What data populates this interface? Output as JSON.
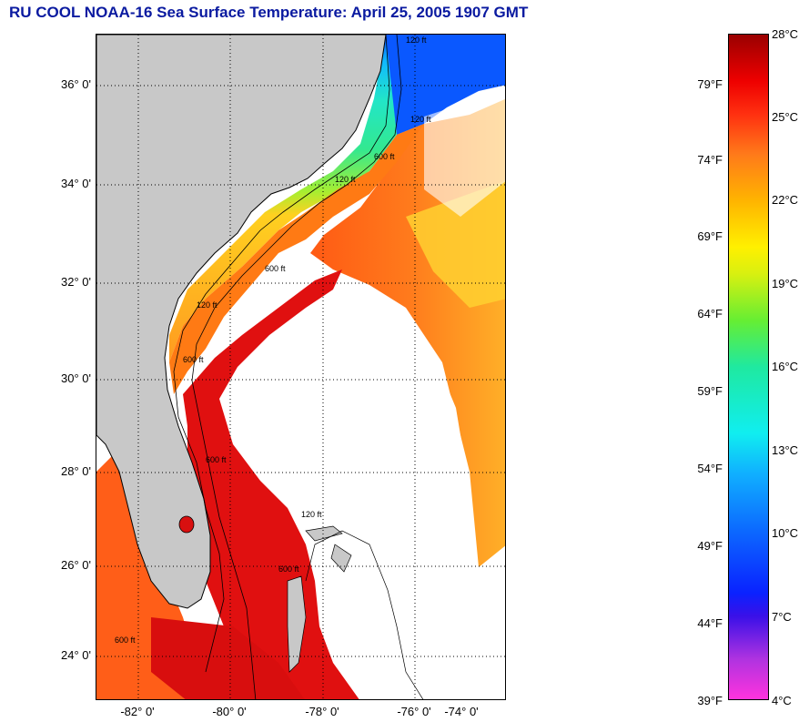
{
  "title": "RU COOL  NOAA-16  Sea Surface Temperature:  April 25, 2005 1907 GMT",
  "map": {
    "lat_labels": [
      "36° 0'",
      "34° 0'",
      "32° 0'",
      "30° 0'",
      "28° 0'",
      "26° 0'",
      "24° 0'"
    ],
    "lon_labels": [
      "-82° 0'",
      "-80° 0'",
      "-78° 0'",
      "-76° 0'",
      "-74° 0'"
    ],
    "contour_labels": [
      "120 ft",
      "120 ft",
      "600 ft",
      "120 ft",
      "600 ft",
      "120 ft",
      "600 ft",
      "600 ft",
      "120 ft",
      "600 ft",
      "600 ft"
    ],
    "colors": {
      "land": "#c8c8c8",
      "cloud": "#ffffff",
      "gulf_stream": "#e01010",
      "warm_water": "#ff6a1a",
      "shelf_water": "#24e2b8",
      "cold_water": "#0a58ff"
    }
  },
  "colorbar": {
    "fahrenheit_labels": [
      "79°F",
      "74°F",
      "69°F",
      "64°F",
      "59°F",
      "54°F",
      "49°F",
      "44°F",
      "39°F"
    ],
    "celsius_labels": [
      "28°C",
      "25°C",
      "22°C",
      "19°C",
      "16°C",
      "13°C",
      "10°C",
      "7°C",
      "4°C"
    ],
    "range_celsius": [
      4,
      28
    ]
  }
}
